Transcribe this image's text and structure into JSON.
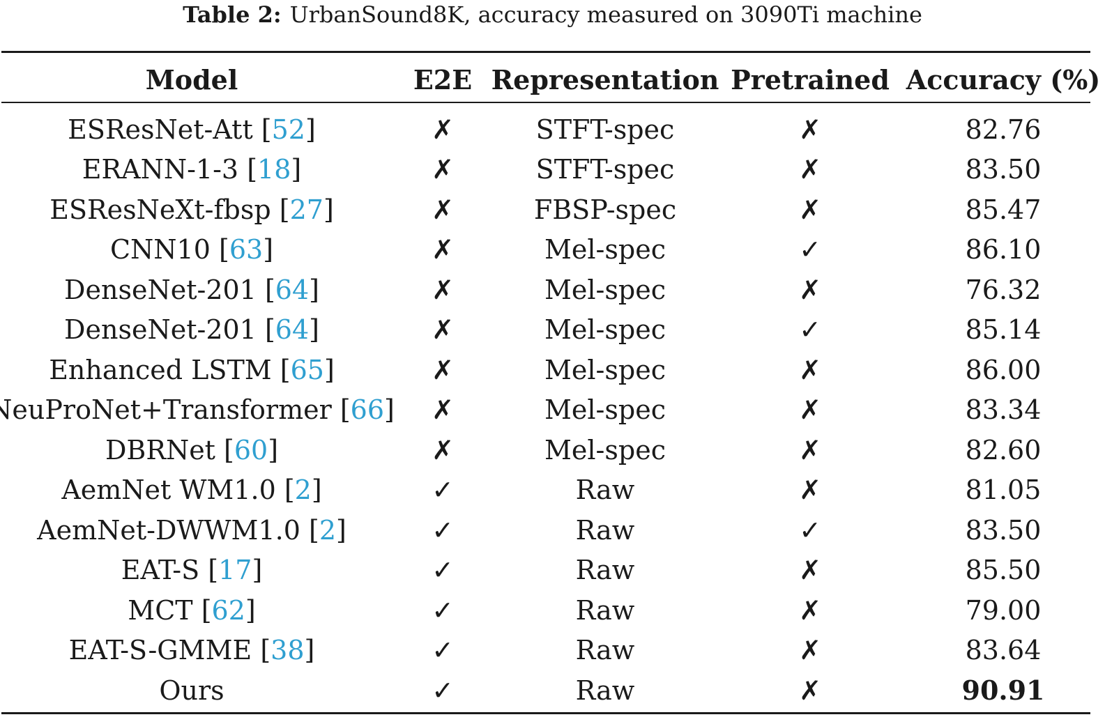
{
  "caption": {
    "label": "Table 2:",
    "text": "UrbanSound8K, accuracy measured on 3090Ti machine"
  },
  "headers": {
    "model": "Model",
    "e2e": "E2E",
    "representation": "Representation",
    "pretrained": "Pretrained",
    "accuracy": "Accuracy (%)"
  },
  "rows": [
    {
      "model": "ESResNet-Att ",
      "ref": "52",
      "e2e": "✗",
      "representation": "STFT-spec",
      "pretrained": "✗",
      "accuracy": "82.76"
    },
    {
      "model": "ERANN-1-3 ",
      "ref": "18",
      "e2e": "✗",
      "representation": "STFT-spec",
      "pretrained": "✗",
      "accuracy": "83.50"
    },
    {
      "model": "ESResNeXt-fbsp ",
      "ref": "27",
      "e2e": "✗",
      "representation": "FBSP-spec",
      "pretrained": "✗",
      "accuracy": "85.47"
    },
    {
      "model": "CNN10 ",
      "ref": "63",
      "e2e": "✗",
      "representation": "Mel-spec",
      "pretrained": "✓",
      "accuracy": "86.10"
    },
    {
      "model": "DenseNet-201 ",
      "ref": "64",
      "e2e": "✗",
      "representation": "Mel-spec",
      "pretrained": "✗",
      "accuracy": "76.32"
    },
    {
      "model": "DenseNet-201 ",
      "ref": "64",
      "e2e": "✗",
      "representation": "Mel-spec",
      "pretrained": "✓",
      "accuracy": "85.14"
    },
    {
      "model": "Enhanced LSTM ",
      "ref": "65",
      "e2e": "✗",
      "representation": "Mel-spec",
      "pretrained": "✗",
      "accuracy": "86.00"
    },
    {
      "model": "NeuProNet+Transformer ",
      "ref": "66",
      "e2e": "✗",
      "representation": "Mel-spec",
      "pretrained": "✗",
      "accuracy": "83.34"
    },
    {
      "model": "DBRNet ",
      "ref": "60",
      "e2e": "✗",
      "representation": "Mel-spec",
      "pretrained": "✗",
      "accuracy": "82.60"
    },
    {
      "model": "AemNet WM1.0 ",
      "ref": "2",
      "e2e": "✓",
      "representation": "Raw",
      "pretrained": "✗",
      "accuracy": "81.05"
    },
    {
      "model": "AemNet-DWWM1.0 ",
      "ref": "2",
      "e2e": "✓",
      "representation": "Raw",
      "pretrained": "✓",
      "accuracy": "83.50"
    },
    {
      "model": "EAT-S ",
      "ref": "17",
      "e2e": "✓",
      "representation": "Raw",
      "pretrained": "✗",
      "accuracy": "85.50"
    },
    {
      "model": "MCT ",
      "ref": "62",
      "e2e": "✓",
      "representation": "Raw",
      "pretrained": "✗",
      "accuracy": "79.00"
    },
    {
      "model": "EAT-S-GMME ",
      "ref": "38",
      "e2e": "✓",
      "representation": "Raw",
      "pretrained": "✗",
      "accuracy": "83.64"
    },
    {
      "model": "Ours",
      "ref": "",
      "e2e": "✓",
      "representation": "Raw",
      "pretrained": "✗",
      "accuracy": "90.91",
      "bold_accuracy": true
    }
  ]
}
